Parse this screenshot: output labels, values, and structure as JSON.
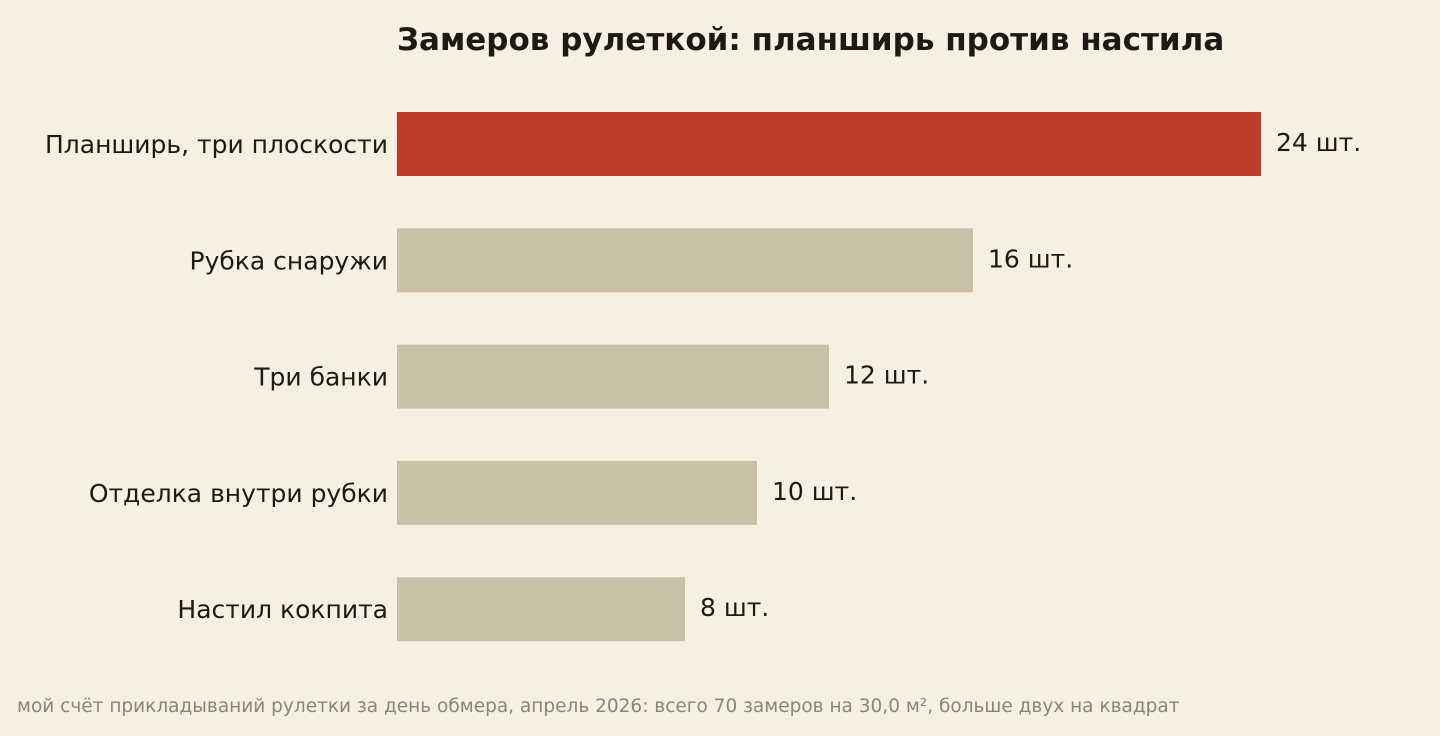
{
  "chart_data": {
    "type": "bar",
    "orientation": "horizontal",
    "title": "Замеров рулеткой: планширь против настила",
    "categories": [
      "Планширь, три плоскости",
      "Рубка снаружи",
      "Три банки",
      "Отделка внутри рубки",
      "Настил кокпита"
    ],
    "values": [
      24,
      16,
      12,
      10,
      8
    ],
    "value_labels": [
      "24 шт.",
      "16 шт.",
      "12 шт.",
      "10 шт.",
      "8 шт."
    ],
    "highlight_index": 0,
    "xlim": [
      0,
      24
    ],
    "grid": false,
    "legend": "none",
    "colors": {
      "highlight": "#bc3d28",
      "default": "#c9c0a7",
      "background": "#f6f0e3",
      "text": "#1c1a12",
      "footnote": "#8a8578"
    },
    "footnote": "мой счёт прикладываний рулетки за день обмера, апрель 2026: всего 70 замеров на 30,0 м², больше двух на квадрат"
  }
}
